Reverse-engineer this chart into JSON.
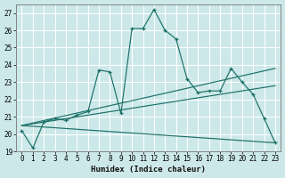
{
  "xlabel": "Humidex (Indice chaleur)",
  "ylabel": "",
  "background_color": "#cce8e8",
  "grid_color": "#ffffff",
  "line_color": "#1a7068",
  "xlim": [
    -0.5,
    23.5
  ],
  "ylim": [
    19,
    27.5
  ],
  "yticks": [
    19,
    20,
    21,
    22,
    23,
    24,
    25,
    26,
    27
  ],
  "xticks": [
    0,
    1,
    2,
    3,
    4,
    5,
    6,
    7,
    8,
    9,
    10,
    11,
    12,
    13,
    14,
    15,
    16,
    17,
    18,
    19,
    20,
    21,
    22,
    23
  ],
  "series_main": {
    "x": [
      0,
      1,
      2,
      3,
      4,
      5,
      6,
      7,
      8,
      9,
      10,
      11,
      12,
      13,
      14,
      15,
      16,
      17,
      18,
      19,
      20,
      21,
      22,
      23
    ],
    "y": [
      20.2,
      19.2,
      20.7,
      20.9,
      20.8,
      21.1,
      21.3,
      23.7,
      23.6,
      21.2,
      26.1,
      26.1,
      27.2,
      26.0,
      25.5,
      23.2,
      22.4,
      22.5,
      22.5,
      23.8,
      23.0,
      22.3,
      20.9,
      19.5
    ]
  },
  "trend_lines": [
    {
      "x": [
        0,
        23
      ],
      "y": [
        20.5,
        23.8
      ]
    },
    {
      "x": [
        0,
        23
      ],
      "y": [
        20.5,
        22.8
      ]
    },
    {
      "x": [
        0,
        23
      ],
      "y": [
        20.5,
        19.5
      ]
    }
  ]
}
